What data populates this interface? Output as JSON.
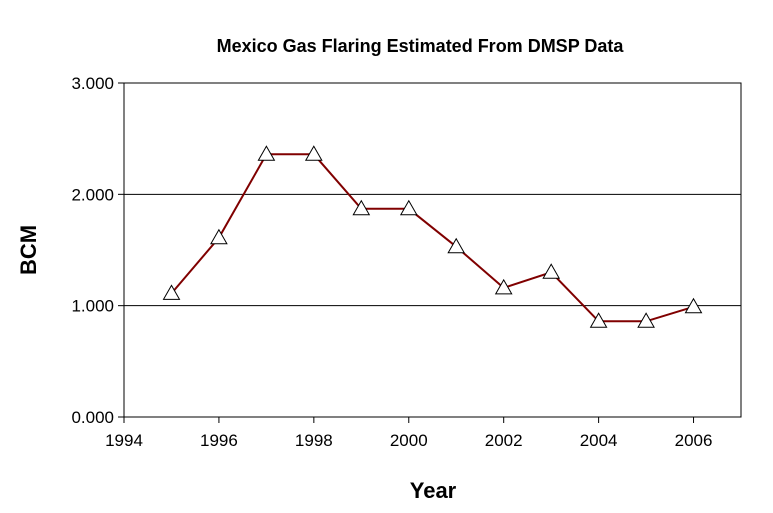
{
  "chart_data": {
    "type": "line",
    "title": "Mexico Gas Flaring Estimated From DMSP Data",
    "xlabel": "Year",
    "ylabel": "BCM",
    "xlim": [
      1994,
      2007
    ],
    "ylim": [
      0,
      3
    ],
    "x_ticks": [
      1994,
      1996,
      1998,
      2000,
      2002,
      2004,
      2006
    ],
    "x_tick_labels": [
      "1994",
      "1996",
      "1998",
      "2000",
      "2002",
      "2004",
      "2006"
    ],
    "y_ticks": [
      0,
      1,
      2,
      3
    ],
    "y_tick_labels": [
      "0.000",
      "1.000",
      "2.000",
      "3.000"
    ],
    "grid": "horizontal",
    "legend": "none",
    "series": [
      {
        "x": [
          1995,
          1996,
          1997,
          1998,
          1999,
          2000,
          2001,
          2002,
          2003,
          2004,
          2005,
          2006
        ],
        "values": [
          1.11,
          1.61,
          2.36,
          2.36,
          1.87,
          1.87,
          1.53,
          1.16,
          1.3,
          0.86,
          0.86,
          0.99
        ],
        "line_color": "#800000",
        "marker": "triangle",
        "marker_fill": "#ffffff",
        "marker_stroke": "#000000"
      }
    ]
  }
}
